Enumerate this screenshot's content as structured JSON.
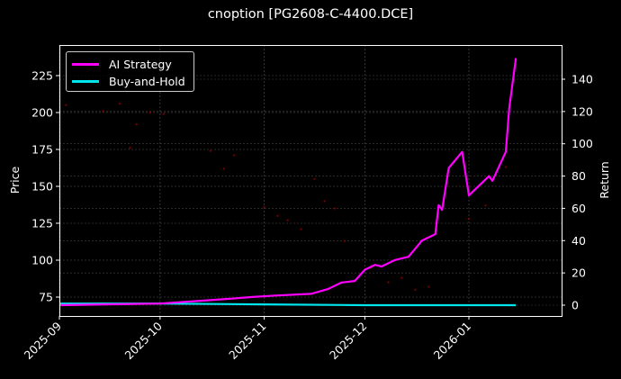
{
  "chart_data": {
    "type": "line",
    "title": "cnoption [PG2608-C-4400.DCE]",
    "xlabel": "",
    "ylabel": "Price",
    "y2label": "Return",
    "x_ticks": [
      "2025-09",
      "2025-10",
      "2025-11",
      "2025-12",
      "2026-01"
    ],
    "y_ticks": [
      75,
      100,
      125,
      150,
      175,
      200,
      225
    ],
    "y2_ticks": [
      0,
      20,
      40,
      60,
      80,
      100,
      120,
      140
    ],
    "ylim": [
      64,
      244
    ],
    "y2lim": [
      -6,
      162
    ],
    "grid": true,
    "legend_position": "upper left",
    "legend": [
      "AI Strategy",
      "Buy-and-Hold"
    ],
    "colors": {
      "ai_strategy": "#ff00ff",
      "buy_and_hold": "#00e5ee",
      "price_scatter": "#8b0000",
      "background": "#000000",
      "text": "#ffffff"
    },
    "series": [
      {
        "name": "AI Strategy",
        "axis": "Return",
        "x": [
          "2025-09-01",
          "2025-09-15",
          "2025-10-01",
          "2025-10-15",
          "2025-10-22",
          "2025-10-28",
          "2025-11-05",
          "2025-11-15",
          "2025-11-20",
          "2025-11-24",
          "2025-11-28",
          "2025-12-01",
          "2025-12-04",
          "2025-12-06",
          "2025-12-10",
          "2025-12-14",
          "2025-12-18",
          "2025-12-22",
          "2025-12-23",
          "2025-12-24",
          "2025-12-26",
          "2025-12-30",
          "2026-01-01",
          "2026-01-07",
          "2026-01-08",
          "2026-01-12",
          "2026-01-13",
          "2026-01-15"
        ],
        "values": [
          0,
          0.5,
          1,
          3,
          4,
          5,
          6,
          7,
          10,
          14,
          15,
          22,
          25,
          24,
          28,
          30,
          40,
          44,
          62,
          59,
          85,
          95,
          68,
          80,
          77,
          95,
          122,
          153
        ]
      },
      {
        "name": "Buy-and-Hold",
        "axis": "Return",
        "x": [
          "2025-09-01",
          "2025-10-01",
          "2025-11-01",
          "2025-12-01",
          "2026-01-01",
          "2026-01-15"
        ],
        "values": [
          1,
          1,
          0.5,
          0,
          0,
          0
        ]
      },
      {
        "name": "Price",
        "axis": "Price",
        "style": "scatter",
        "x": [
          "2025-09-03",
          "2025-09-14",
          "2025-09-19",
          "2025-09-22",
          "2025-09-24",
          "2025-09-28",
          "2025-10-02",
          "2025-10-16",
          "2025-10-20",
          "2025-10-23",
          "2025-11-01",
          "2025-11-05",
          "2025-11-08",
          "2025-11-12",
          "2025-11-16",
          "2025-11-19",
          "2025-11-22",
          "2025-11-25",
          "2025-12-03",
          "2025-12-08",
          "2025-12-12",
          "2025-12-16",
          "2025-12-20",
          "2026-01-01",
          "2026-01-06",
          "2026-01-12"
        ],
        "values": [
          205,
          201,
          206,
          176,
          192,
          200,
          199,
          174,
          162,
          171,
          136,
          130,
          127,
          121,
          155,
          140,
          135,
          113,
          95,
          85,
          88,
          80,
          82,
          128,
          137,
          163
        ]
      }
    ]
  }
}
